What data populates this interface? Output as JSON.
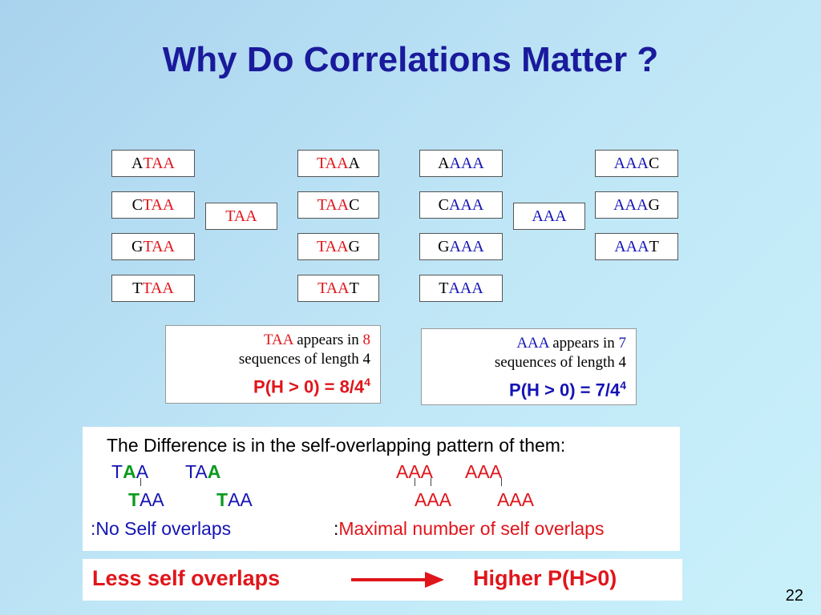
{
  "title": "Why Do Correlations Matter ?",
  "taa_group": {
    "center": "TAA",
    "left": [
      {
        "pre": "A",
        "core": "TAA"
      },
      {
        "pre": "C",
        "core": "TAA"
      },
      {
        "pre": "G",
        "core": "TAA"
      },
      {
        "pre": "T",
        "core": "TAA"
      }
    ],
    "right": [
      {
        "core": "TAA",
        "post": "A"
      },
      {
        "core": "TAA",
        "post": "C"
      },
      {
        "core": "TAA",
        "post": "G"
      },
      {
        "core": "TAA",
        "post": "T"
      }
    ]
  },
  "aaa_group": {
    "center": "AAA",
    "left": [
      {
        "pre": "A",
        "core": "AAA"
      },
      {
        "pre": "C",
        "core": "AAA"
      },
      {
        "pre": "G",
        "core": "AAA"
      },
      {
        "pre": "T",
        "core": "AAA"
      }
    ],
    "right": [
      {
        "core": "AAA",
        "post": "C"
      },
      {
        "core": "AAA",
        "post": "G"
      },
      {
        "core": "AAA",
        "post": "T"
      }
    ]
  },
  "taa_info": {
    "word": "TAA",
    "appears": " appears in ",
    "count": "8",
    "line2": "sequences of length 4",
    "prob": "P(H > 0) = 8/4",
    "exp": "4"
  },
  "aaa_info": {
    "word": "AAA",
    "appears": " appears in ",
    "count": "7",
    "line2": "sequences of length 4",
    "prob": "P(H > 0) = 7/4",
    "exp": "4"
  },
  "difference": {
    "heading": "The Difference is in the self-overlapping pattern of them:",
    "no_overlap_label": ":No Self overlaps",
    "max_prefix": ":",
    "max_overlap_label": "Maximal number of self overlaps"
  },
  "bottom": {
    "left": "Less self overlaps",
    "right": "Higher P(H>0)"
  },
  "page_number": "22",
  "colors": {
    "red": "#e0151b",
    "blue": "#1414b4",
    "green": "#0a9a1e",
    "title": "#1a1a9c"
  }
}
